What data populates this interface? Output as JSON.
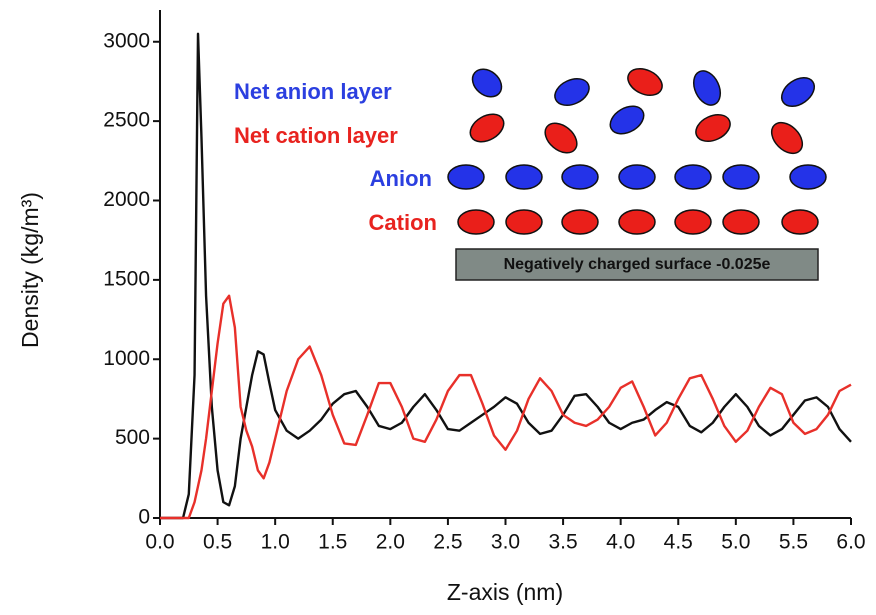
{
  "chart_data": {
    "type": "line",
    "xlabel": "Z-axis (nm)",
    "ylabel": "Density (kg/m³)",
    "x": [
      0,
      0.1,
      0.2,
      0.25,
      0.3,
      0.33,
      0.36,
      0.4,
      0.45,
      0.5,
      0.55,
      0.6,
      0.65,
      0.7,
      0.75,
      0.8,
      0.85,
      0.9,
      0.95,
      1.0,
      1.1,
      1.2,
      1.3,
      1.4,
      1.5,
      1.6,
      1.7,
      1.8,
      1.9,
      2.0,
      2.1,
      2.2,
      2.3,
      2.4,
      2.5,
      2.6,
      2.7,
      2.8,
      2.9,
      3.0,
      3.1,
      3.2,
      3.3,
      3.4,
      3.5,
      3.6,
      3.7,
      3.8,
      3.9,
      4.0,
      4.1,
      4.2,
      4.3,
      4.4,
      4.5,
      4.6,
      4.7,
      4.8,
      4.9,
      5.0,
      5.1,
      5.2,
      5.3,
      5.4,
      5.5,
      5.6,
      5.7,
      5.8,
      5.9,
      6.0
    ],
    "series": [
      {
        "color": "#111111",
        "values": [
          0,
          0,
          0,
          150,
          900,
          3050,
          2400,
          1400,
          700,
          300,
          100,
          80,
          200,
          500,
          700,
          900,
          1050,
          1030,
          850,
          680,
          550,
          500,
          550,
          620,
          720,
          780,
          800,
          700,
          580,
          560,
          600,
          700,
          780,
          680,
          560,
          550,
          600,
          650,
          700,
          760,
          720,
          600,
          530,
          550,
          650,
          770,
          780,
          700,
          600,
          560,
          600,
          620,
          680,
          730,
          700,
          580,
          540,
          600,
          700,
          780,
          700,
          580,
          520,
          560,
          650,
          740,
          760,
          700,
          560,
          480
        ]
      },
      {
        "color": "#e8302a",
        "values": [
          0,
          0,
          0,
          0,
          100,
          200,
          300,
          500,
          800,
          1100,
          1350,
          1400,
          1200,
          700,
          550,
          450,
          300,
          250,
          350,
          500,
          800,
          1000,
          1080,
          900,
          650,
          470,
          460,
          650,
          850,
          850,
          700,
          500,
          480,
          620,
          800,
          900,
          900,
          720,
          520,
          430,
          550,
          750,
          880,
          800,
          650,
          600,
          580,
          620,
          700,
          820,
          860,
          700,
          520,
          600,
          750,
          880,
          900,
          750,
          580,
          480,
          550,
          700,
          820,
          780,
          600,
          530,
          560,
          650,
          800,
          840
        ]
      }
    ],
    "xlim": [
      0,
      6
    ],
    "ylim": [
      0,
      3200
    ],
    "xticks": [
      {
        "value": 0,
        "label": "0.0"
      },
      {
        "value": 0.5,
        "label": "0.5"
      },
      {
        "value": 1,
        "label": "1.0"
      },
      {
        "value": 1.5,
        "label": "1.5"
      },
      {
        "value": 2,
        "label": "2.0"
      },
      {
        "value": 2.5,
        "label": "2.5"
      },
      {
        "value": 3,
        "label": "3.0"
      },
      {
        "value": 3.5,
        "label": "3.5"
      },
      {
        "value": 4,
        "label": "4.0"
      },
      {
        "value": 4.5,
        "label": "4.5"
      },
      {
        "value": 5,
        "label": "5.0"
      },
      {
        "value": 5.5,
        "label": "5.5"
      },
      {
        "value": 6,
        "label": "6.0"
      }
    ],
    "yticks": [
      0,
      500,
      1000,
      1500,
      2000,
      2500,
      3000
    ],
    "annotations": [
      {
        "text": "Net anion layer",
        "color": "#2b3fe0"
      },
      {
        "text": "Net cation layer",
        "color": "#e8231f"
      },
      {
        "text": "Anion",
        "color": "#2b3fe0"
      },
      {
        "text": "Cation",
        "color": "#e8231f"
      }
    ],
    "surface_label": "Negatively charged surface -0.025e"
  }
}
